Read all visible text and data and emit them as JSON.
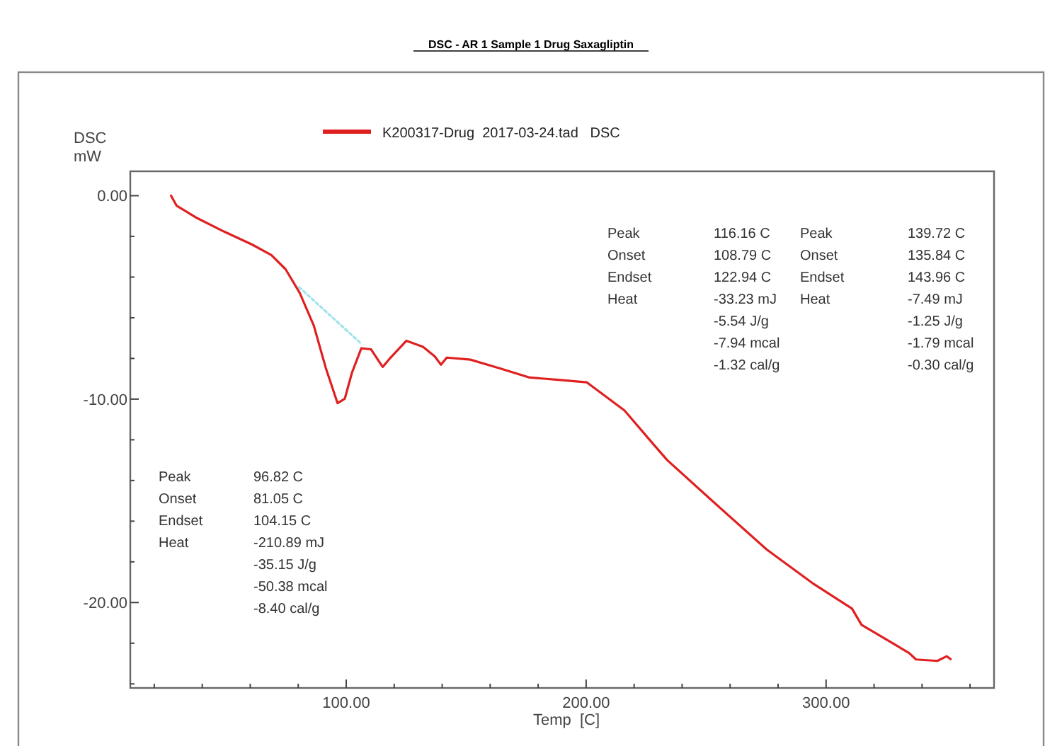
{
  "chart_data": {
    "type": "line",
    "title": "DSC - AR 1 Sample 1 Drug Saxagliptin",
    "xlabel": "Temp  [C]",
    "ylabel": "DSC\nmW",
    "xlim": [
      10,
      370
    ],
    "ylim": [
      -24.2,
      1.2
    ],
    "xticks": [
      {
        "value": 20,
        "label": null
      },
      {
        "value": 40,
        "label": null
      },
      {
        "value": 60,
        "label": null
      },
      {
        "value": 80,
        "label": null
      },
      {
        "value": 100,
        "label": "100.00"
      },
      {
        "value": 120,
        "label": null
      },
      {
        "value": 140,
        "label": null
      },
      {
        "value": 160,
        "label": null
      },
      {
        "value": 180,
        "label": null
      },
      {
        "value": 200,
        "label": "200.00"
      },
      {
        "value": 220,
        "label": null
      },
      {
        "value": 240,
        "label": null
      },
      {
        "value": 260,
        "label": null
      },
      {
        "value": 280,
        "label": null
      },
      {
        "value": 300,
        "label": "300.00"
      },
      {
        "value": 320,
        "label": null
      },
      {
        "value": 340,
        "label": null
      },
      {
        "value": 360,
        "label": null
      }
    ],
    "yticks": [
      {
        "value": 0,
        "label": "0.00"
      },
      {
        "value": -2,
        "label": null
      },
      {
        "value": -4,
        "label": null
      },
      {
        "value": -6,
        "label": null
      },
      {
        "value": -8,
        "label": null
      },
      {
        "value": -10,
        "label": "-10.00"
      },
      {
        "value": -12,
        "label": null
      },
      {
        "value": -14,
        "label": null
      },
      {
        "value": -16,
        "label": null
      },
      {
        "value": -18,
        "label": null
      },
      {
        "value": -20,
        "label": "-20.00"
      },
      {
        "value": -22,
        "label": null
      },
      {
        "value": -24,
        "label": null
      }
    ],
    "grid": false,
    "legend": "top",
    "line_style": "solid",
    "marker": "none",
    "series": [
      {
        "name": "K200317-Drug  2017-03-24.tad   DSC",
        "color": "#e02020",
        "x": [
          27,
          29.3,
          37.2,
          49,
          60.9,
          68.8,
          74.7,
          80.6,
          86.5,
          91.5,
          96.4,
          99.4,
          102.4,
          106.3,
          110.3,
          115.2,
          118.2,
          125.1,
          132,
          136.9,
          139.5,
          141.9,
          151.8,
          163.6,
          176.5,
          188.3,
          200.2,
          216,
          227.9,
          233.8,
          253.5,
          275.3,
          295,
          310.8,
          314.8,
          334.6,
          337.5,
          346.4,
          350.3,
          351.9
        ],
        "values": [
          0,
          -0.49,
          -1.06,
          -1.76,
          -2.41,
          -2.92,
          -3.61,
          -4.77,
          -6.39,
          -8.47,
          -10.2,
          -9.98,
          -8.7,
          -7.5,
          -7.55,
          -8.42,
          -8.0,
          -7.13,
          -7.43,
          -7.9,
          -8.31,
          -7.96,
          -8.06,
          -8.47,
          -8.94,
          -9.05,
          -9.17,
          -10.56,
          -12.2,
          -13.0,
          -15.1,
          -17.4,
          -19.1,
          -20.3,
          -21.1,
          -22.48,
          -22.8,
          -22.87,
          -22.64,
          -22.78
        ]
      },
      {
        "color": "#9fe3ee",
        "x": [
          80.4,
          106.5
        ],
        "values": [
          -4.5,
          -7.3
        ],
        "line_style": "dotted"
      }
    ],
    "annotations": [
      "Peak\t116.16 C\tPeak\t139.72 C\nOnset\t108.79 C\tOnset\t135.84 C\nEndset\t122.94 C\tEndset\t143.96 C\nHeat\t-33.23 mJ\tHeat\t-7.49 mJ\n\t-5.54 J/g\t\t-1.25 J/g\n\t-7.94 mcal\t\t-1.79 mcal\n\t-1.32 cal/g\t\t-0.30 cal/g",
      "Peak\t96.82 C\nOnset\t81.05 C\nEndset\t104.15 C\nHeat\t-210.89 mJ\n\t-35.15 J/g\n\t-50.38 mcal\n\t-8.40 cal/g"
    ]
  }
}
